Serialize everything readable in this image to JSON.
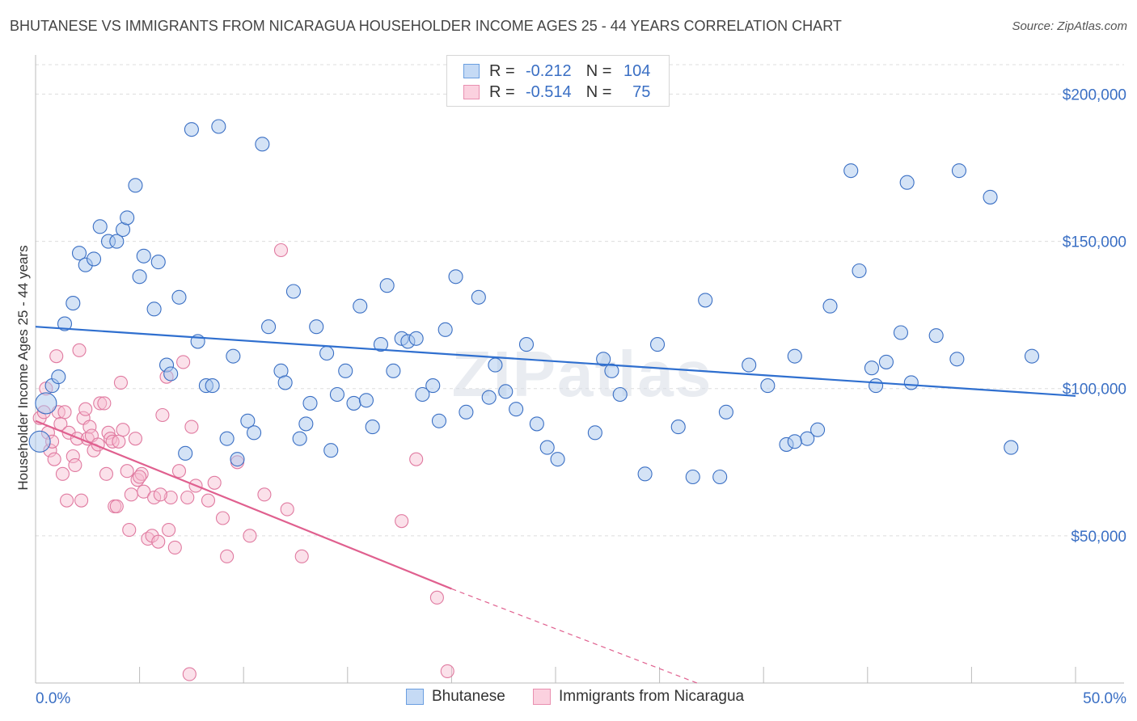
{
  "title": "BHUTANESE VS IMMIGRANTS FROM NICARAGUA HOUSEHOLDER INCOME AGES 25 - 44 YEARS CORRELATION CHART",
  "source": "Source: ZipAtlas.com",
  "watermark": "ZIPatlas",
  "colors": {
    "blue": "#3a6fc4",
    "blue_fill": "#aac8ee",
    "blue_line": "#2f6fcf",
    "pink": "#e07aa0",
    "pink_fill": "#f6bcd0",
    "pink_line": "#e0608f",
    "grid": "#dddddd",
    "axis_label": "#3a6fc4"
  },
  "legend_top": {
    "rows": [
      {
        "r_label": "R =",
        "r_value": "-0.212",
        "n_label": "N =",
        "n_value": "104"
      },
      {
        "r_label": "R =",
        "r_value": "-0.514",
        "n_label": "N =",
        "n_value": "75"
      }
    ]
  },
  "legend_bottom": [
    "Bhutanese",
    "Immigrants from Nicaragua"
  ],
  "chart_data": {
    "type": "scatter",
    "xlabel": "",
    "ylabel": "Householder Income Ages 25 - 44 years",
    "xlim": [
      0,
      50
    ],
    "ylim": [
      0,
      210000
    ],
    "x_tick_labels": [
      "0.0%",
      "50.0%"
    ],
    "y_ticks": [
      50000,
      100000,
      150000,
      200000
    ],
    "y_tick_labels": [
      "$50,000",
      "$100,000",
      "$150,000",
      "$200,000"
    ],
    "grid": "horizontal dashed",
    "legend_placement": "bottom",
    "series": [
      {
        "name": "Bhutanese",
        "r": -0.212,
        "n": 104,
        "trend": {
          "x0": 0,
          "y0": 121000,
          "x1": 50,
          "y1": 97500
        },
        "points": [
          [
            0.2,
            82000
          ],
          [
            0.5,
            95000
          ],
          [
            0.8,
            101000
          ],
          [
            1.1,
            104000
          ],
          [
            1.4,
            122000
          ],
          [
            1.8,
            129000
          ],
          [
            2.1,
            146000
          ],
          [
            2.4,
            142000
          ],
          [
            2.8,
            144000
          ],
          [
            3.1,
            155000
          ],
          [
            3.5,
            150000
          ],
          [
            3.9,
            150000
          ],
          [
            4.2,
            154000
          ],
          [
            4.4,
            158000
          ],
          [
            4.8,
            169000
          ],
          [
            5.0,
            138000
          ],
          [
            5.2,
            145000
          ],
          [
            5.7,
            127000
          ],
          [
            5.9,
            143000
          ],
          [
            6.3,
            108000
          ],
          [
            6.5,
            105000
          ],
          [
            6.9,
            131000
          ],
          [
            7.2,
            78000
          ],
          [
            7.5,
            188000
          ],
          [
            7.8,
            116000
          ],
          [
            8.2,
            101000
          ],
          [
            8.5,
            101000
          ],
          [
            8.8,
            189000
          ],
          [
            9.2,
            83000
          ],
          [
            9.5,
            111000
          ],
          [
            9.7,
            76000
          ],
          [
            10.2,
            89000
          ],
          [
            10.5,
            85000
          ],
          [
            10.9,
            183000
          ],
          [
            11.2,
            121000
          ],
          [
            11.8,
            106000
          ],
          [
            12.0,
            102000
          ],
          [
            12.4,
            133000
          ],
          [
            12.7,
            83000
          ],
          [
            13.0,
            88000
          ],
          [
            13.2,
            95000
          ],
          [
            13.5,
            121000
          ],
          [
            14.0,
            112000
          ],
          [
            14.2,
            79000
          ],
          [
            14.5,
            98000
          ],
          [
            14.9,
            106000
          ],
          [
            15.3,
            95000
          ],
          [
            15.6,
            128000
          ],
          [
            15.9,
            96000
          ],
          [
            16.2,
            87000
          ],
          [
            16.6,
            115000
          ],
          [
            16.9,
            135000
          ],
          [
            17.2,
            106000
          ],
          [
            17.6,
            117000
          ],
          [
            17.9,
            116000
          ],
          [
            18.3,
            117000
          ],
          [
            18.6,
            98000
          ],
          [
            19.1,
            101000
          ],
          [
            19.4,
            89000
          ],
          [
            19.7,
            120000
          ],
          [
            20.2,
            138000
          ],
          [
            20.7,
            92000
          ],
          [
            21.3,
            131000
          ],
          [
            21.8,
            97000
          ],
          [
            22.1,
            108000
          ],
          [
            22.6,
            99000
          ],
          [
            23.1,
            93000
          ],
          [
            23.6,
            115000
          ],
          [
            24.1,
            88000
          ],
          [
            24.6,
            80000
          ],
          [
            25.1,
            76000
          ],
          [
            26.9,
            85000
          ],
          [
            27.3,
            110000
          ],
          [
            27.7,
            106000
          ],
          [
            28.1,
            98000
          ],
          [
            29.3,
            71000
          ],
          [
            29.9,
            115000
          ],
          [
            30.9,
            87000
          ],
          [
            31.6,
            70000
          ],
          [
            32.2,
            130000
          ],
          [
            32.9,
            70000
          ],
          [
            33.2,
            92000
          ],
          [
            34.3,
            108000
          ],
          [
            35.2,
            101000
          ],
          [
            36.1,
            81000
          ],
          [
            36.5,
            111000
          ],
          [
            37.1,
            83000
          ],
          [
            37.6,
            86000
          ],
          [
            38.2,
            128000
          ],
          [
            36.5,
            82000
          ],
          [
            39.2,
            174000
          ],
          [
            39.6,
            140000
          ],
          [
            40.2,
            107000
          ],
          [
            40.4,
            101000
          ],
          [
            40.9,
            109000
          ],
          [
            41.6,
            119000
          ],
          [
            41.9,
            170000
          ],
          [
            42.1,
            102000
          ],
          [
            43.3,
            118000
          ],
          [
            44.3,
            110000
          ],
          [
            44.4,
            174000
          ],
          [
            45.9,
            165000
          ],
          [
            46.9,
            80000
          ],
          [
            47.9,
            111000
          ]
        ]
      },
      {
        "name": "Immigrants from Nicaragua",
        "r": -0.514,
        "n": 75,
        "trend": {
          "x0": 0,
          "y0": 89000,
          "x1": 20,
          "y1": 32000,
          "dash_x1": 31.8,
          "dash_y1": 0
        },
        "points": [
          [
            0.2,
            90000
          ],
          [
            0.4,
            92000
          ],
          [
            0.5,
            100000
          ],
          [
            0.6,
            85000
          ],
          [
            0.7,
            79000
          ],
          [
            0.8,
            82000
          ],
          [
            0.9,
            76000
          ],
          [
            1.0,
            111000
          ],
          [
            1.1,
            92000
          ],
          [
            1.2,
            88000
          ],
          [
            1.3,
            71000
          ],
          [
            1.4,
            92000
          ],
          [
            1.6,
            85000
          ],
          [
            1.8,
            77000
          ],
          [
            1.9,
            74000
          ],
          [
            2.0,
            83000
          ],
          [
            2.1,
            113000
          ],
          [
            2.3,
            90000
          ],
          [
            2.4,
            93000
          ],
          [
            2.5,
            83000
          ],
          [
            2.6,
            87000
          ],
          [
            2.7,
            84000
          ],
          [
            2.8,
            79000
          ],
          [
            3.0,
            81000
          ],
          [
            3.1,
            95000
          ],
          [
            3.3,
            95000
          ],
          [
            3.4,
            71000
          ],
          [
            3.5,
            85000
          ],
          [
            3.6,
            83000
          ],
          [
            3.7,
            82000
          ],
          [
            3.8,
            60000
          ],
          [
            4.0,
            82000
          ],
          [
            4.1,
            102000
          ],
          [
            4.2,
            86000
          ],
          [
            4.4,
            72000
          ],
          [
            4.5,
            52000
          ],
          [
            4.6,
            64000
          ],
          [
            4.8,
            83000
          ],
          [
            4.9,
            69000
          ],
          [
            5.1,
            71000
          ],
          [
            5.2,
            65000
          ],
          [
            5.4,
            49000
          ],
          [
            5.6,
            50000
          ],
          [
            5.7,
            63000
          ],
          [
            5.9,
            48000
          ],
          [
            6.1,
            91000
          ],
          [
            6.3,
            104000
          ],
          [
            6.4,
            52000
          ],
          [
            6.5,
            63000
          ],
          [
            6.7,
            46000
          ],
          [
            6.9,
            72000
          ],
          [
            7.1,
            109000
          ],
          [
            7.3,
            63000
          ],
          [
            7.5,
            87000
          ],
          [
            7.7,
            67000
          ],
          [
            8.3,
            62000
          ],
          [
            8.6,
            68000
          ],
          [
            9.0,
            56000
          ],
          [
            9.2,
            43000
          ],
          [
            9.7,
            75000
          ],
          [
            10.3,
            50000
          ],
          [
            11.0,
            64000
          ],
          [
            11.8,
            147000
          ],
          [
            12.1,
            59000
          ],
          [
            12.8,
            43000
          ],
          [
            17.6,
            55000
          ],
          [
            18.3,
            76000
          ],
          [
            19.3,
            29000
          ],
          [
            19.8,
            4000
          ],
          [
            7.4,
            3000
          ],
          [
            5.0,
            70000
          ],
          [
            6.0,
            64000
          ],
          [
            2.2,
            62000
          ],
          [
            3.9,
            60000
          ],
          [
            1.5,
            62000
          ]
        ]
      }
    ]
  }
}
